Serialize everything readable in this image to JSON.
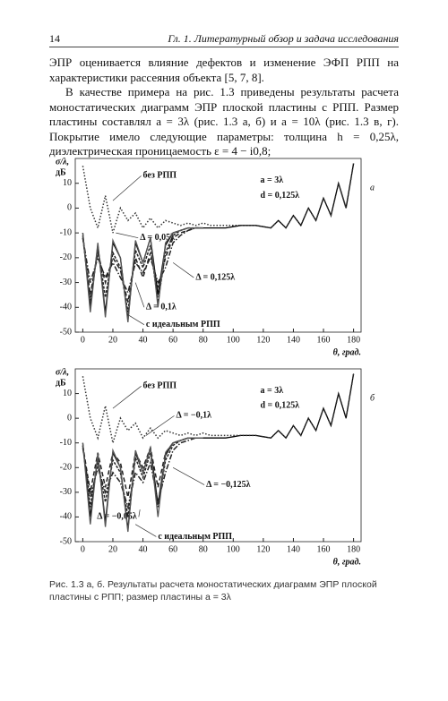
{
  "header": {
    "page": "14",
    "title": "Гл. 1. Литературный обзор и задача исследования"
  },
  "paragraphs": [
    "ЭПР оценивается влияние дефектов и изменение ЭФП РПП на характеристики рассеяния объекта [5, 7, 8].",
    "В качестве примера на рис. 1.3 приведены результаты расчета моностатических диаграмм ЭПР плоской пластины с РПП. Размер пластины составлял a = 3λ (рис. 1.3 а, б) и a = 10λ (рис. 1.3 в, г). Покрытие имело следующие параметры: толщина h = 0,25λ, диэлектрическая проницаемость ε = 4 − i0,8;"
  ],
  "chart_data": [
    {
      "type": "line",
      "panel": "а",
      "xlabel": "θ, град.",
      "ylabel": [
        "σ/λ,",
        "дБ"
      ],
      "annotation": [
        "a = 3λ",
        "d = 0,125λ"
      ],
      "xlim": [
        -5,
        185
      ],
      "ylim": [
        -50,
        20
      ],
      "xticks": [
        0,
        20,
        40,
        60,
        80,
        100,
        120,
        140,
        160,
        180
      ],
      "yticks": [
        -50,
        -40,
        -30,
        -20,
        -10,
        0,
        10
      ],
      "grid": false,
      "x": [
        0,
        5,
        10,
        15,
        20,
        25,
        30,
        35,
        40,
        45,
        50,
        55,
        60,
        65,
        70,
        75,
        80,
        85,
        90,
        95,
        100,
        105,
        110,
        115,
        120,
        125,
        130,
        135,
        140,
        145,
        150,
        155,
        160,
        165,
        170,
        175,
        180
      ],
      "series": [
        {
          "color": "#000000",
          "style": "solid",
          "values": [
            -10,
            -40,
            -15,
            -42,
            -14,
            -20,
            -45,
            -14,
            -22,
            -12,
            -35,
            -15,
            -10,
            -9,
            -8,
            -8,
            -8,
            -8,
            -8,
            -8,
            -7.5,
            -7,
            -7,
            -7,
            -7.5,
            -8,
            -5,
            -8,
            -3,
            -7,
            0,
            -5,
            4,
            -3,
            10,
            0,
            18
          ]
        },
        {
          "name": "без РПП",
          "color": "#333333",
          "style": "dotted",
          "values": [
            17,
            0,
            -8,
            5,
            -10,
            0,
            -5,
            -2,
            -8,
            -4,
            -8,
            -5,
            -6,
            -7,
            -6,
            -7,
            -6,
            -7,
            -7,
            -7,
            -7,
            -7,
            -7,
            -7,
            -7.5,
            -8,
            -5,
            -8,
            -3,
            -7,
            0,
            -5,
            4,
            -3,
            10,
            0,
            18
          ]
        },
        {
          "name": "Δ = 0,05λ",
          "color": "#222222",
          "style": "dashed",
          "values": [
            -12,
            -35,
            -18,
            -30,
            -20,
            -25,
            -38,
            -20,
            -28,
            -18,
            -32,
            -20,
            -12,
            -10,
            -9,
            -8,
            -8,
            null,
            null,
            null,
            null,
            null,
            null,
            null,
            null,
            null,
            null,
            null,
            null,
            null,
            null,
            null,
            null,
            null,
            null,
            null,
            null
          ]
        },
        {
          "name": "Δ = 0,125λ",
          "color": "#222222",
          "style": "dashdot",
          "values": [
            -12,
            -30,
            -20,
            -28,
            -22,
            -28,
            -34,
            -22,
            -26,
            -20,
            -30,
            -24,
            -14,
            -11,
            -9,
            -8,
            -8,
            null,
            null,
            null,
            null,
            null,
            null,
            null,
            null,
            null,
            null,
            null,
            null,
            null,
            null,
            null,
            null,
            null,
            null,
            null,
            null
          ]
        },
        {
          "name": "Δ = 0,1λ",
          "color": "#222222",
          "style": "densedash",
          "values": [
            -11,
            -38,
            -16,
            -36,
            -18,
            -24,
            -42,
            -17,
            -24,
            -15,
            -38,
            -18,
            -11,
            -9,
            -8,
            -8,
            -8,
            null,
            null,
            null,
            null,
            null,
            null,
            null,
            null,
            null,
            null,
            null,
            null,
            null,
            null,
            null,
            null,
            null,
            null,
            null,
            null
          ]
        },
        {
          "name": "с идеальным РПП",
          "color": "#555555",
          "style": "solid",
          "values": [
            -10,
            -42,
            -14,
            -44,
            -13,
            -20,
            -46,
            -13,
            -22,
            -12,
            -40,
            -14,
            -10,
            -9,
            -8,
            -8,
            -8,
            null,
            null,
            null,
            null,
            null,
            null,
            null,
            null,
            null,
            null,
            null,
            null,
            null,
            null,
            null,
            null,
            null,
            null,
            null,
            null
          ]
        }
      ]
    },
    {
      "type": "line",
      "panel": "б",
      "xlabel": "θ, град.",
      "ylabel": [
        "σ/λ,",
        "дБ"
      ],
      "annotation": [
        "a = 3λ",
        "d = 0,125λ"
      ],
      "xlim": [
        -5,
        185
      ],
      "ylim": [
        -50,
        20
      ],
      "xticks": [
        0,
        20,
        40,
        60,
        80,
        100,
        120,
        140,
        160,
        180
      ],
      "yticks": [
        -50,
        -40,
        -30,
        -20,
        -10,
        0,
        10
      ],
      "grid": false,
      "x": [
        0,
        5,
        10,
        15,
        20,
        25,
        30,
        35,
        40,
        45,
        50,
        55,
        60,
        65,
        70,
        75,
        80,
        85,
        90,
        95,
        100,
        105,
        110,
        115,
        120,
        125,
        130,
        135,
        140,
        145,
        150,
        155,
        160,
        165,
        170,
        175,
        180
      ],
      "series": [
        {
          "color": "#000000",
          "style": "solid",
          "values": [
            -10,
            -40,
            -15,
            -42,
            -14,
            -20,
            -45,
            -14,
            -22,
            -12,
            -35,
            -15,
            -10,
            -9,
            -8,
            -8,
            -8,
            -8,
            -8,
            -8,
            -7.5,
            -7,
            -7,
            -7,
            -7.5,
            -8,
            -5,
            -8,
            -3,
            -7,
            0,
            -5,
            4,
            -3,
            10,
            0,
            18
          ]
        },
        {
          "name": "без РПП",
          "color": "#333333",
          "style": "dotted",
          "values": [
            17,
            0,
            -8,
            5,
            -10,
            0,
            -5,
            -2,
            -8,
            -4,
            -8,
            -5,
            -6,
            -7,
            -6,
            -7,
            -6,
            -7,
            -7,
            -7,
            -7,
            -7,
            -7,
            -7,
            -7.5,
            -8,
            -5,
            -8,
            -3,
            -7,
            0,
            -5,
            4,
            -3,
            10,
            0,
            18
          ]
        },
        {
          "name": "Δ = −0,1λ",
          "color": "#222222",
          "style": "dashed",
          "values": [
            -11,
            -30,
            -14,
            -28,
            -14,
            -18,
            -32,
            -14,
            -20,
            -12,
            -28,
            -14,
            -10,
            -9,
            -8,
            -8,
            -8,
            null,
            null,
            null,
            null,
            null,
            null,
            null,
            null,
            null,
            null,
            null,
            null,
            null,
            null,
            null,
            null,
            null,
            null,
            null,
            null
          ]
        },
        {
          "name": "Δ = −0,125λ",
          "color": "#222222",
          "style": "dashdot",
          "values": [
            -12,
            -32,
            -20,
            -30,
            -22,
            -26,
            -36,
            -22,
            -26,
            -18,
            -34,
            -22,
            -13,
            -10,
            -9,
            -8,
            -8,
            null,
            null,
            null,
            null,
            null,
            null,
            null,
            null,
            null,
            null,
            null,
            null,
            null,
            null,
            null,
            null,
            null,
            null,
            null,
            null
          ]
        },
        {
          "name": "Δ = −0,05λ",
          "color": "#222222",
          "style": "densedash",
          "values": [
            -11,
            -36,
            -17,
            -34,
            -17,
            -22,
            -40,
            -16,
            -24,
            -14,
            -36,
            -17,
            -11,
            -9,
            -8,
            -8,
            -8,
            null,
            null,
            null,
            null,
            null,
            null,
            null,
            null,
            null,
            null,
            null,
            null,
            null,
            null,
            null,
            null,
            null,
            null,
            null,
            null
          ]
        },
        {
          "name": "с идеальным РПП",
          "color": "#555555",
          "style": "solid",
          "values": [
            -10,
            -43,
            -14,
            -44,
            -13,
            -20,
            -46,
            -13,
            -22,
            -12,
            -40,
            -14,
            -10,
            -9,
            -8,
            -8,
            -8,
            null,
            null,
            null,
            null,
            null,
            null,
            null,
            null,
            null,
            null,
            null,
            null,
            null,
            null,
            null,
            null,
            null,
            null,
            null,
            null
          ]
        }
      ]
    }
  ],
  "caption": "Рис. 1.3 а, б. Результаты расчета моностатических диаграмм ЭПР плоской пластины с РПП; размер пластины a = 3λ"
}
